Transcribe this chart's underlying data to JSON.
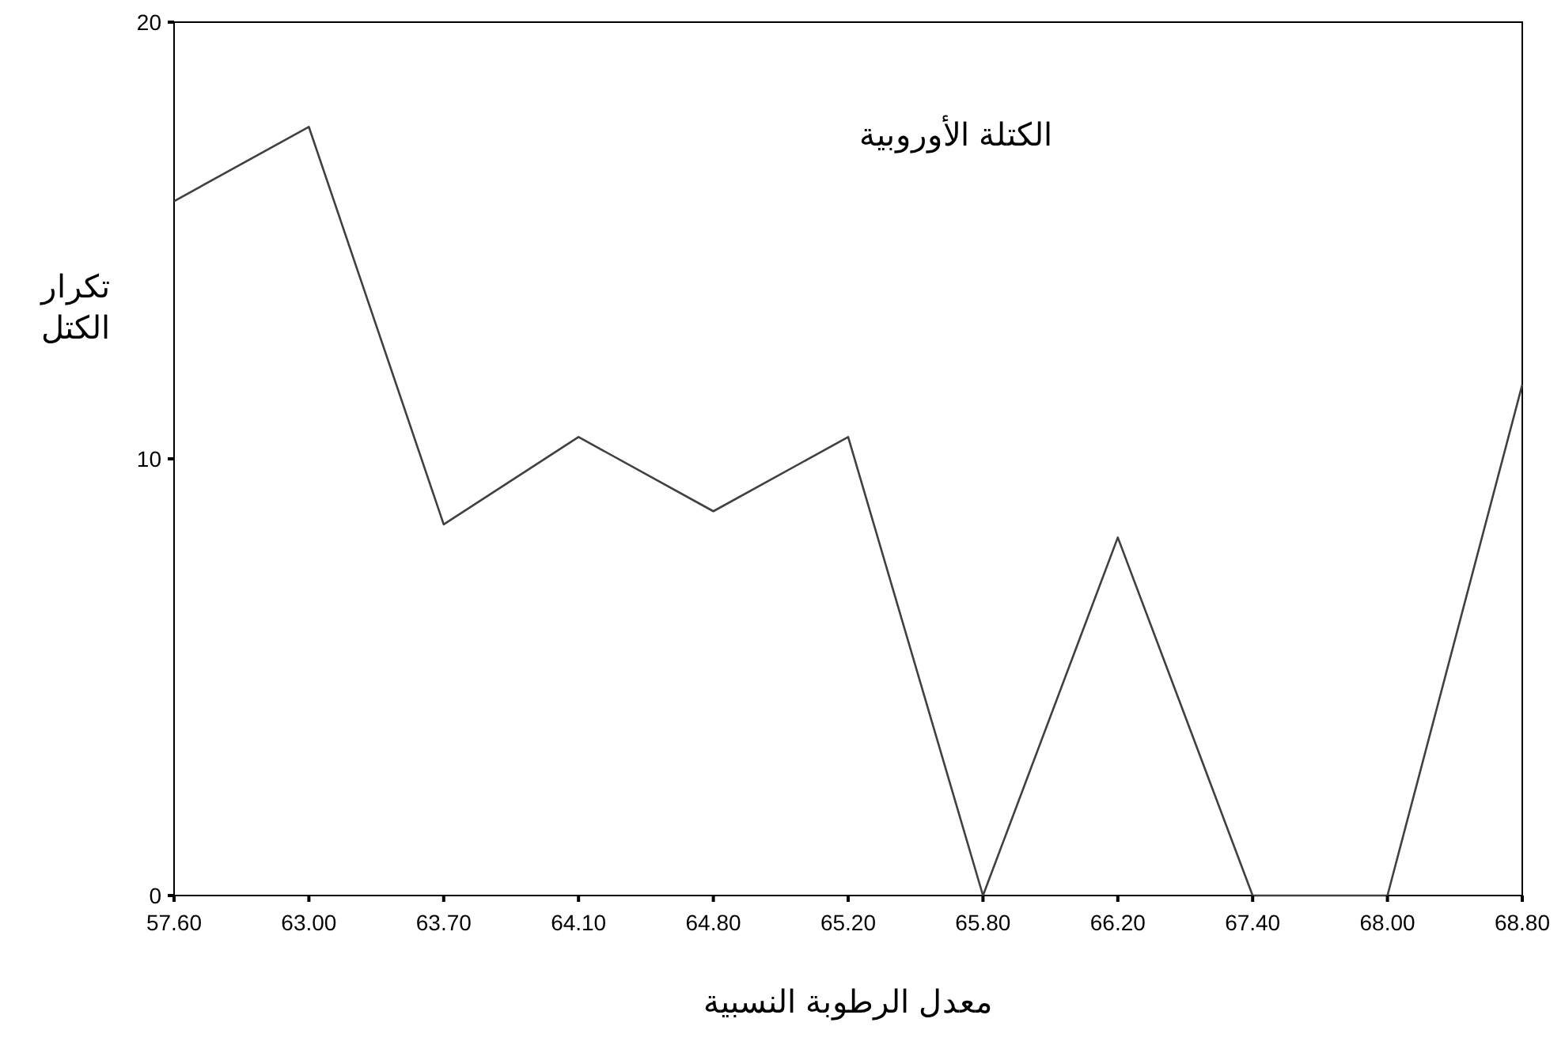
{
  "chart_data": {
    "type": "line",
    "xlabel": "معدل الرطوبة النسبية",
    "ylabel": "تكرار الكتل",
    "categories": [
      "57.60",
      "63.00",
      "63.70",
      "64.10",
      "64.80",
      "65.20",
      "65.80",
      "66.20",
      "67.40",
      "68.00",
      "68.80"
    ],
    "series": [
      {
        "color": "#404040",
        "values": [
          15.9,
          17.6,
          8.5,
          10.5,
          8.8,
          10.5,
          0,
          8.2,
          0,
          0,
          11.7
        ]
      }
    ],
    "ylim": [
      0,
      20
    ],
    "yticks": [
      0,
      10,
      20
    ],
    "grid": false,
    "marker": "none",
    "line_style": "solid",
    "annotations": [
      "الكتلة الأوروبية"
    ]
  }
}
